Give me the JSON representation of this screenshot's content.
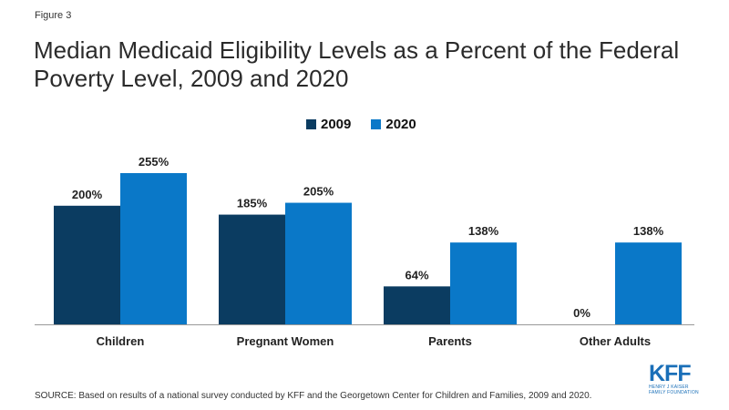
{
  "figure_label": "Figure 3",
  "title": "Median Medicaid Eligibility Levels as a Percent of the Federal Poverty Level, 2009 and 2020",
  "source": "SOURCE: Based on results of a national survey conducted by KFF and the Georgetown Center for Children and Families, 2009 and 2020.",
  "logo": {
    "mark": "KFF",
    "sub_line1": "HENRY J KAISER",
    "sub_line2": "FAMILY FOUNDATION"
  },
  "colors": {
    "series_2009": "#0b3c61",
    "series_2020": "#0a78c8",
    "baseline": "#999999"
  },
  "chart_data": {
    "type": "bar",
    "categories": [
      "Children",
      "Pregnant Women",
      "Parents",
      "Other Adults"
    ],
    "series": [
      {
        "name": "2009",
        "values": [
          200,
          185,
          64,
          0
        ],
        "labels": [
          "200%",
          "185%",
          "64%",
          "0%"
        ]
      },
      {
        "name": "2020",
        "values": [
          255,
          205,
          138,
          138
        ],
        "labels": [
          "255%",
          "205%",
          "138%",
          "138%"
        ]
      }
    ],
    "ylim": [
      0,
      255
    ],
    "legend_position": "top-center",
    "grid": false
  }
}
